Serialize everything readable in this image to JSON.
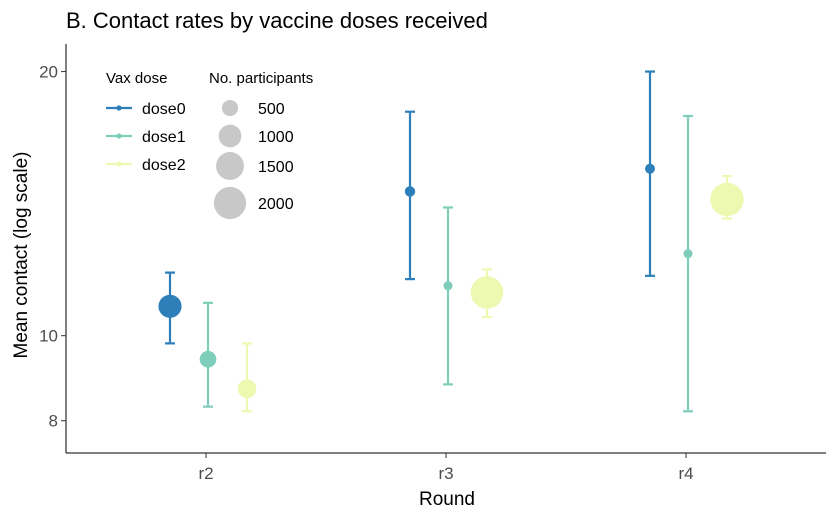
{
  "chart_data": {
    "type": "pointrange",
    "title": "B. Contact rates by vaccine doses received",
    "xlabel": "Round",
    "ylabel": "Mean contact (log scale)",
    "y_scale": "log",
    "ylim": [
      7.35,
      21.5
    ],
    "y_ticks": [
      8,
      10,
      20
    ],
    "y_tick_labels": [
      "8",
      "10",
      "20"
    ],
    "categories": [
      "r2",
      "r3",
      "r4"
    ],
    "grid": false,
    "legend": {
      "color_title": "Vax dose",
      "size_title": "No. participants",
      "placement": "top-left",
      "size_entries": [
        {
          "label": "500",
          "value": 500
        },
        {
          "label": "1000",
          "value": 1000
        },
        {
          "label": "1500",
          "value": 1500
        },
        {
          "label": "2000",
          "value": 2000
        }
      ]
    },
    "series": [
      {
        "name": "dose0",
        "color": "#2c7fb8",
        "points": [
          {
            "x": "r2",
            "y": 10.8,
            "ymin": 9.8,
            "ymax": 11.8,
            "n": 1030
          },
          {
            "x": "r3",
            "y": 14.6,
            "ymin": 11.6,
            "ymax": 18.0,
            "n": 210
          },
          {
            "x": "r4",
            "y": 15.5,
            "ymin": 11.7,
            "ymax": 20.0,
            "n": 190
          }
        ]
      },
      {
        "name": "dose1",
        "color": "#7fcdbb",
        "points": [
          {
            "x": "r2",
            "y": 9.4,
            "ymin": 8.3,
            "ymax": 10.9,
            "n": 540
          },
          {
            "x": "r3",
            "y": 11.4,
            "ymin": 8.8,
            "ymax": 14.0,
            "n": 160
          },
          {
            "x": "r4",
            "y": 12.4,
            "ymin": 8.2,
            "ymax": 17.8,
            "n": 160
          }
        ]
      },
      {
        "name": "dose2",
        "color": "#edf8b1",
        "points": [
          {
            "x": "r2",
            "y": 8.7,
            "ymin": 8.2,
            "ymax": 9.8,
            "n": 670
          },
          {
            "x": "r3",
            "y": 11.2,
            "ymin": 10.5,
            "ymax": 11.9,
            "n": 2050
          },
          {
            "x": "r4",
            "y": 14.3,
            "ymin": 13.6,
            "ymax": 15.2,
            "n": 2150
          }
        ]
      }
    ]
  }
}
